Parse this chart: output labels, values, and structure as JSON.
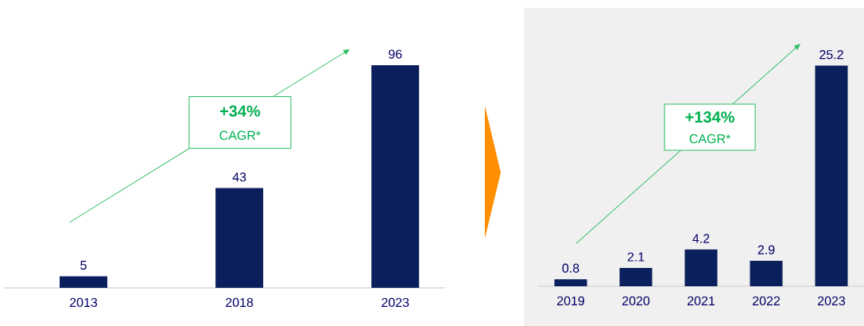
{
  "chart_data": [
    {
      "type": "bar",
      "categories": [
        "2013",
        "2018",
        "2023"
      ],
      "values": [
        5,
        43,
        96
      ],
      "color": "#0a1f5c",
      "data_labels": true,
      "annotations": [
        "+34%",
        "CAGR*"
      ]
    },
    {
      "type": "bar",
      "categories": [
        "2019",
        "2020",
        "2021",
        "2022",
        "2023"
      ],
      "values": [
        0.8,
        2.1,
        4.2,
        2.9,
        25.2
      ],
      "color": "#0a1f5c",
      "data_labels": true,
      "annotations": [
        "+134%",
        "CAGR*"
      ]
    }
  ]
}
